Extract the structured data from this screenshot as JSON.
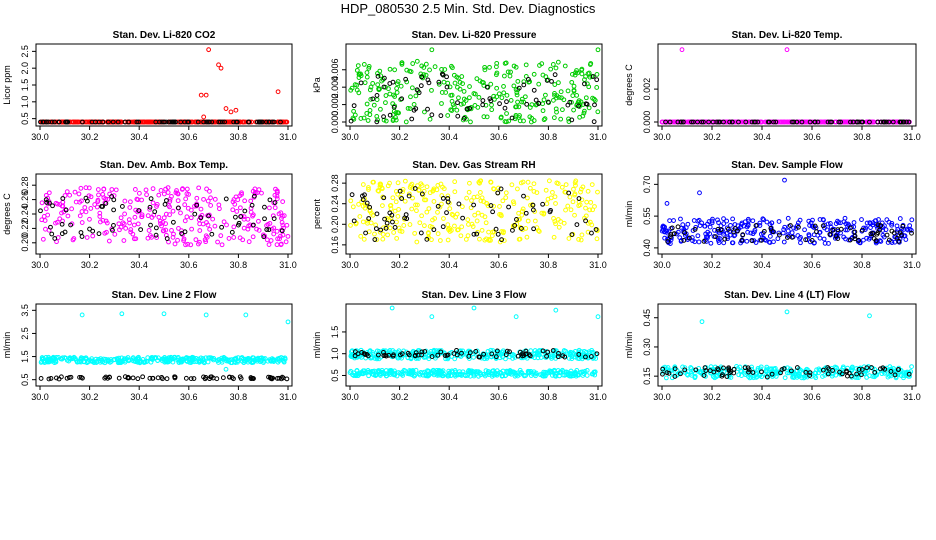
{
  "title": "HDP_080530  2.5 Min. Std. Dev. Diagnostics",
  "colors": {
    "red": "#ff0000",
    "green": "#00cc00",
    "magenta": "#ff00ff",
    "yellow": "#ffff00",
    "blue": "#0000ff",
    "cyan": "#00ffff",
    "black": "#000000"
  },
  "chart_data": [
    {
      "type": "scatter",
      "title": "Stan. Dev. Li-820 CO2",
      "ylabel": "Licor ppm",
      "xlim": [
        30.0,
        31.0
      ],
      "ylim": [
        0.4,
        2.6
      ],
      "xticks": [
        "30.0",
        "30.2",
        "30.4",
        "30.6",
        "30.8",
        "31.0"
      ],
      "yticks": [
        "0.5",
        "1.0",
        "1.5",
        "2.0",
        "2.5"
      ],
      "series": [
        {
          "name": "main",
          "color": "#ff0000",
          "baseline": 0.33,
          "spread": 0.05,
          "outliers": [
            [
              30.68,
              2.55
            ],
            [
              30.72,
              2.1
            ],
            [
              30.73,
              2.0
            ],
            [
              30.65,
              1.2
            ],
            [
              30.67,
              1.2
            ],
            [
              30.75,
              0.8
            ],
            [
              30.77,
              0.7
            ],
            [
              30.79,
              0.75
            ],
            [
              30.96,
              1.3
            ],
            [
              30.66,
              0.55
            ]
          ]
        },
        {
          "name": "secondary",
          "color": "#000000",
          "baseline": 0.32,
          "spread": 0.04,
          "outliers": []
        }
      ]
    },
    {
      "type": "scatter",
      "title": "Stan. Dev. Li-820 Pressure",
      "ylabel": "kPa",
      "xlim": [
        30.0,
        31.0
      ],
      "ylim": [
        0.0,
        0.0085
      ],
      "xticks": [
        "30.0",
        "30.2",
        "30.4",
        "30.6",
        "30.8",
        "31.0"
      ],
      "yticks": [
        "0.000",
        "0.002",
        "0.004",
        "0.006"
      ],
      "series": [
        {
          "name": "main",
          "color": "#00cc00",
          "baseline": 0.0035,
          "spread": 0.0035,
          "outliers": [
            [
              30.33,
              0.0083
            ],
            [
              31.0,
              0.0083
            ]
          ]
        },
        {
          "name": "secondary",
          "color": "#000000",
          "baseline": 0.003,
          "spread": 0.003,
          "outliers": []
        }
      ]
    },
    {
      "type": "scatter",
      "title": "Stan. Dev. Li-820 Temp.",
      "ylabel": "degrees C",
      "xlim": [
        30.0,
        31.0
      ],
      "ylim": [
        0.0,
        0.0045
      ],
      "xticks": [
        "30.0",
        "30.2",
        "30.4",
        "30.6",
        "30.8",
        "31.0"
      ],
      "yticks": [
        "0.000",
        "0.002"
      ],
      "series": [
        {
          "name": "main",
          "color": "#ff00ff",
          "baseline": 0.0,
          "spread": 0.0,
          "outliers": [
            [
              30.08,
              0.0044
            ],
            [
              30.5,
              0.0044
            ]
          ]
        },
        {
          "name": "secondary",
          "color": "#000000",
          "baseline": 0.0,
          "spread": 0.0,
          "outliers": []
        }
      ]
    },
    {
      "type": "scatter",
      "title": "Stan. Dev. Amb. Box Temp.",
      "ylabel": "degrees C",
      "xlim": [
        30.0,
        31.0
      ],
      "ylim": [
        0.19,
        0.29
      ],
      "xticks": [
        "30.0",
        "30.2",
        "30.4",
        "30.6",
        "30.8",
        "31.0"
      ],
      "yticks": [
        "0.20",
        "0.22",
        "0.24",
        "0.26",
        "0.28"
      ],
      "series": [
        {
          "name": "main",
          "color": "#ff00ff",
          "baseline": 0.237,
          "spread": 0.04,
          "outliers": []
        },
        {
          "name": "secondary",
          "color": "#000000",
          "baseline": 0.235,
          "spread": 0.03,
          "outliers": []
        }
      ]
    },
    {
      "type": "scatter",
      "title": "Stan. Dev. Gas Stream RH",
      "ylabel": "percent",
      "xlim": [
        30.0,
        31.0
      ],
      "ylim": [
        0.15,
        0.29
      ],
      "xticks": [
        "30.0",
        "30.2",
        "30.4",
        "30.6",
        "30.8",
        "31.0"
      ],
      "yticks": [
        "0.16",
        "0.20",
        "0.24",
        "0.28"
      ],
      "series": [
        {
          "name": "main",
          "color": "#ffff00",
          "baseline": 0.225,
          "spread": 0.06,
          "outliers": []
        },
        {
          "name": "secondary",
          "color": "#000000",
          "baseline": 0.22,
          "spread": 0.05,
          "outliers": []
        }
      ]
    },
    {
      "type": "scatter",
      "title": "Stan. Dev. Sample Flow",
      "ylabel": "ml/min",
      "xlim": [
        30.0,
        31.0
      ],
      "ylim": [
        0.39,
        0.73
      ],
      "xticks": [
        "30.0",
        "30.2",
        "30.4",
        "30.6",
        "30.8",
        "31.0"
      ],
      "yticks": [
        "0.40",
        "0.55",
        "0.70"
      ],
      "series": [
        {
          "name": "main",
          "color": "#0000ff",
          "baseline": 0.48,
          "spread": 0.06,
          "outliers": [
            [
              30.49,
              0.72
            ],
            [
              30.15,
              0.66
            ],
            [
              30.02,
              0.61
            ]
          ]
        },
        {
          "name": "secondary",
          "color": "#000000",
          "baseline": 0.47,
          "spread": 0.04,
          "outliers": []
        }
      ]
    },
    {
      "type": "scatter",
      "title": "Stan. Dev. Line 2 Flow",
      "ylabel": "ml/min",
      "xlim": [
        30.0,
        31.0
      ],
      "ylim": [
        0.4,
        3.6
      ],
      "xticks": [
        "30.0",
        "30.2",
        "30.4",
        "30.6",
        "30.8",
        "31.0"
      ],
      "yticks": [
        "0.5",
        "1.5",
        "2.5",
        "3.5"
      ],
      "series": [
        {
          "name": "main",
          "color": "#00ffff",
          "baseline": 1.35,
          "spread": 0.12,
          "outliers": [
            [
              30.17,
              3.3
            ],
            [
              30.33,
              3.35
            ],
            [
              30.5,
              3.35
            ],
            [
              30.67,
              3.3
            ],
            [
              30.83,
              3.3
            ],
            [
              31.0,
              3.0
            ],
            [
              30.75,
              0.95
            ]
          ]
        },
        {
          "name": "secondary",
          "color": "#000000",
          "baseline": 0.58,
          "spread": 0.05,
          "outliers": []
        }
      ]
    },
    {
      "type": "scatter",
      "title": "Stan. Dev. Line 3 Flow",
      "ylabel": "ml/min",
      "xlim": [
        30.0,
        31.0
      ],
      "ylim": [
        0.35,
        2.05
      ],
      "xticks": [
        "30.0",
        "30.2",
        "30.4",
        "30.6",
        "30.8",
        "31.0"
      ],
      "yticks": [
        "0.5",
        "1.0",
        "1.5"
      ],
      "series": [
        {
          "name": "main-upper",
          "color": "#00ffff",
          "baseline": 0.98,
          "spread": 0.1,
          "outliers": [
            [
              30.17,
              2.05
            ],
            [
              30.33,
              1.85
            ],
            [
              30.5,
              2.05
            ],
            [
              30.67,
              1.85
            ],
            [
              30.83,
              2.0
            ],
            [
              31.0,
              1.85
            ]
          ]
        },
        {
          "name": "main-lower",
          "color": "#00ffff",
          "baseline": 0.55,
          "spread": 0.07,
          "outliers": []
        },
        {
          "name": "secondary",
          "color": "#000000",
          "baseline": 1.0,
          "spread": 0.08,
          "outliers": []
        }
      ]
    },
    {
      "type": "scatter",
      "title": "Stan. Dev. Line 4 (LT) Flow",
      "ylabel": "ml/min",
      "xlim": [
        30.0,
        31.0
      ],
      "ylim": [
        0.12,
        0.5
      ],
      "xticks": [
        "30.0",
        "30.2",
        "30.4",
        "30.6",
        "30.8",
        "31.0"
      ],
      "yticks": [
        "0.15",
        "0.30",
        "0.45"
      ],
      "series": [
        {
          "name": "main",
          "color": "#00ffff",
          "baseline": 0.17,
          "spread": 0.03,
          "outliers": [
            [
              30.16,
              0.43
            ],
            [
              30.5,
              0.48
            ],
            [
              30.83,
              0.46
            ]
          ]
        },
        {
          "name": "secondary",
          "color": "#000000",
          "baseline": 0.17,
          "spread": 0.025,
          "outliers": []
        }
      ]
    }
  ]
}
